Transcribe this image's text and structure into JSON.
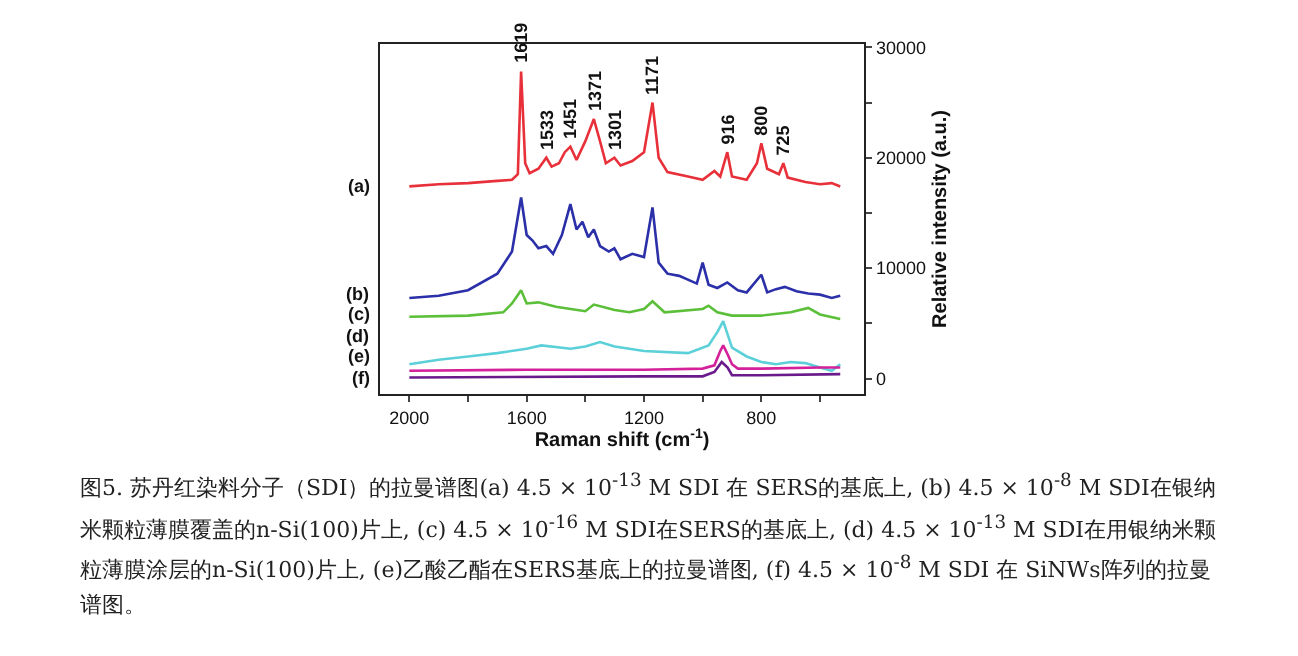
{
  "chart_data": {
    "type": "line",
    "xlabel": "Raman shift (cm$^{-1}$)",
    "ylabel": "Relative intensity (a.u.)",
    "xlim": [
      2100,
      450
    ],
    "xticks": [
      2000,
      {
        "value": 1800,
        "label": null
      },
      1600,
      {
        "value": 1400,
        "label": null
      },
      1200,
      {
        "value": 1000,
        "label": null
      },
      800,
      {
        "value": 600,
        "label": null
      }
    ],
    "ylim": [
      -1400,
      30300
    ],
    "yticks": [
      0,
      {
        "value": 5000,
        "label": null
      },
      10000,
      {
        "value": 15000,
        "label": null
      },
      20000,
      {
        "value": 25000,
        "label": null
      },
      30000
    ],
    "series": [
      {
        "name": "(a)",
        "color": "#e8303a",
        "x": [
          2000,
          1900,
          1800,
          1700,
          1650,
          1630,
          1619,
          1605,
          1590,
          1560,
          1533,
          1515,
          1490,
          1470,
          1451,
          1430,
          1400,
          1371,
          1350,
          1330,
          1301,
          1280,
          1240,
          1200,
          1171,
          1150,
          1120,
          1050,
          1000,
          960,
          940,
          916,
          900,
          850,
          815,
          800,
          780,
          740,
          725,
          710,
          650,
          600,
          560,
          531
        ],
        "values": [
          17400,
          17600,
          17700,
          17900,
          18000,
          18500,
          27800,
          19500,
          18600,
          19000,
          20000,
          19200,
          19500,
          20500,
          21000,
          19800,
          21500,
          23500,
          21500,
          19500,
          20000,
          19300,
          19700,
          20500,
          25000,
          20000,
          18700,
          18300,
          18000,
          18800,
          18300,
          20500,
          18300,
          18000,
          19500,
          21300,
          19000,
          18500,
          19500,
          18200,
          17800,
          17600,
          17700,
          17400
        ]
      },
      {
        "name": "(b)",
        "color": "#2b2fa8",
        "x": [
          2000,
          1900,
          1800,
          1700,
          1650,
          1619,
          1600,
          1580,
          1560,
          1533,
          1510,
          1480,
          1451,
          1430,
          1410,
          1390,
          1371,
          1350,
          1320,
          1301,
          1280,
          1240,
          1200,
          1171,
          1150,
          1120,
          1080,
          1020,
          1000,
          980,
          950,
          916,
          880,
          850,
          800,
          780,
          750,
          720,
          680,
          640,
          600,
          560,
          531
        ],
        "values": [
          7300,
          7500,
          8000,
          9500,
          11500,
          16400,
          13000,
          12500,
          11800,
          12000,
          11300,
          13000,
          15800,
          13500,
          14200,
          12800,
          13500,
          12000,
          11500,
          11800,
          10800,
          11300,
          11000,
          15500,
          10500,
          9500,
          9300,
          8600,
          10500,
          8500,
          8200,
          8700,
          8000,
          7800,
          9400,
          7800,
          8100,
          8300,
          7900,
          7700,
          7600,
          7300,
          7500
        ]
      },
      {
        "name": "(c)",
        "color": "#5cbf3a",
        "x": [
          2000,
          1800,
          1680,
          1650,
          1619,
          1600,
          1560,
          1500,
          1450,
          1400,
          1371,
          1300,
          1250,
          1200,
          1171,
          1130,
          1000,
          980,
          950,
          900,
          800,
          700,
          640,
          600,
          531
        ],
        "values": [
          5600,
          5700,
          6000,
          6800,
          8000,
          6800,
          6900,
          6500,
          6300,
          6100,
          6700,
          6200,
          6000,
          6300,
          7000,
          6000,
          6300,
          6600,
          6000,
          5700,
          5700,
          6000,
          6400,
          5800,
          5400
        ]
      },
      {
        "name": "(d)",
        "color": "#5cd0d8",
        "x": [
          2000,
          1900,
          1800,
          1700,
          1600,
          1550,
          1450,
          1400,
          1350,
          1300,
          1200,
          1050,
          980,
          950,
          930,
          915,
          900,
          850,
          800,
          750,
          700,
          650,
          600,
          560,
          531
        ],
        "values": [
          1300,
          1700,
          2000,
          2300,
          2700,
          3000,
          2700,
          2900,
          3300,
          2900,
          2500,
          2300,
          3000,
          4200,
          5200,
          4000,
          2800,
          2000,
          1500,
          1300,
          1500,
          1400,
          1000,
          700,
          1300
        ]
      },
      {
        "name": "(e)",
        "color": "#d4209a",
        "x": [
          2000,
          1600,
          1200,
          1000,
          960,
          940,
          930,
          915,
          900,
          880,
          800,
          600,
          531
        ],
        "values": [
          700,
          800,
          800,
          900,
          1200,
          2500,
          3000,
          2200,
          1300,
          900,
          900,
          1000,
          1000
        ]
      },
      {
        "name": "(f)",
        "color": "#6a1a8a",
        "x": [
          2000,
          1200,
          1000,
          960,
          935,
          915,
          900,
          800,
          531
        ],
        "values": [
          100,
          200,
          200,
          600,
          1500,
          1000,
          300,
          300,
          400
        ]
      }
    ],
    "annotations": [
      {
        "text": "1619",
        "x": 1619,
        "y": 27800
      },
      {
        "text": "1533",
        "x": 1533,
        "y": 20000
      },
      {
        "text": "1451",
        "x": 1451,
        "y": 21000
      },
      {
        "text": "1371",
        "x": 1371,
        "y": 23500
      },
      {
        "text": "1301",
        "x": 1301,
        "y": 20000
      },
      {
        "text": "1171",
        "x": 1171,
        "y": 25000
      },
      {
        "text": "916",
        "x": 916,
        "y": 20500
      },
      {
        "text": "800",
        "x": 800,
        "y": 21300
      },
      {
        "text": "725",
        "x": 725,
        "y": 19500
      },
      "图5. 苏丹红染料分子（SDI）的拉曼谱图(a) 4.5 × 10$^{-13}$ M SDI 在 SERS的基底上, (b) 4.5 × 10$^{-8}$ M SDI在银纳米颗粒薄膜覆盖的n-Si(100)片上, (c) 4.5 × 10$^{-16}$ M SDI在SERS的基底上, (d) 4.5 × 10$^{-13}$ M SDI在用银纳米颗粒薄膜涂层的n-Si(100)片上, (e)乙酸乙酯在SERS基底上的拉曼谱图, (f) 4.5 × 10$^{-8}$ M SDI 在 SiNWs阵列的拉曼谱图。"
    ]
  }
}
